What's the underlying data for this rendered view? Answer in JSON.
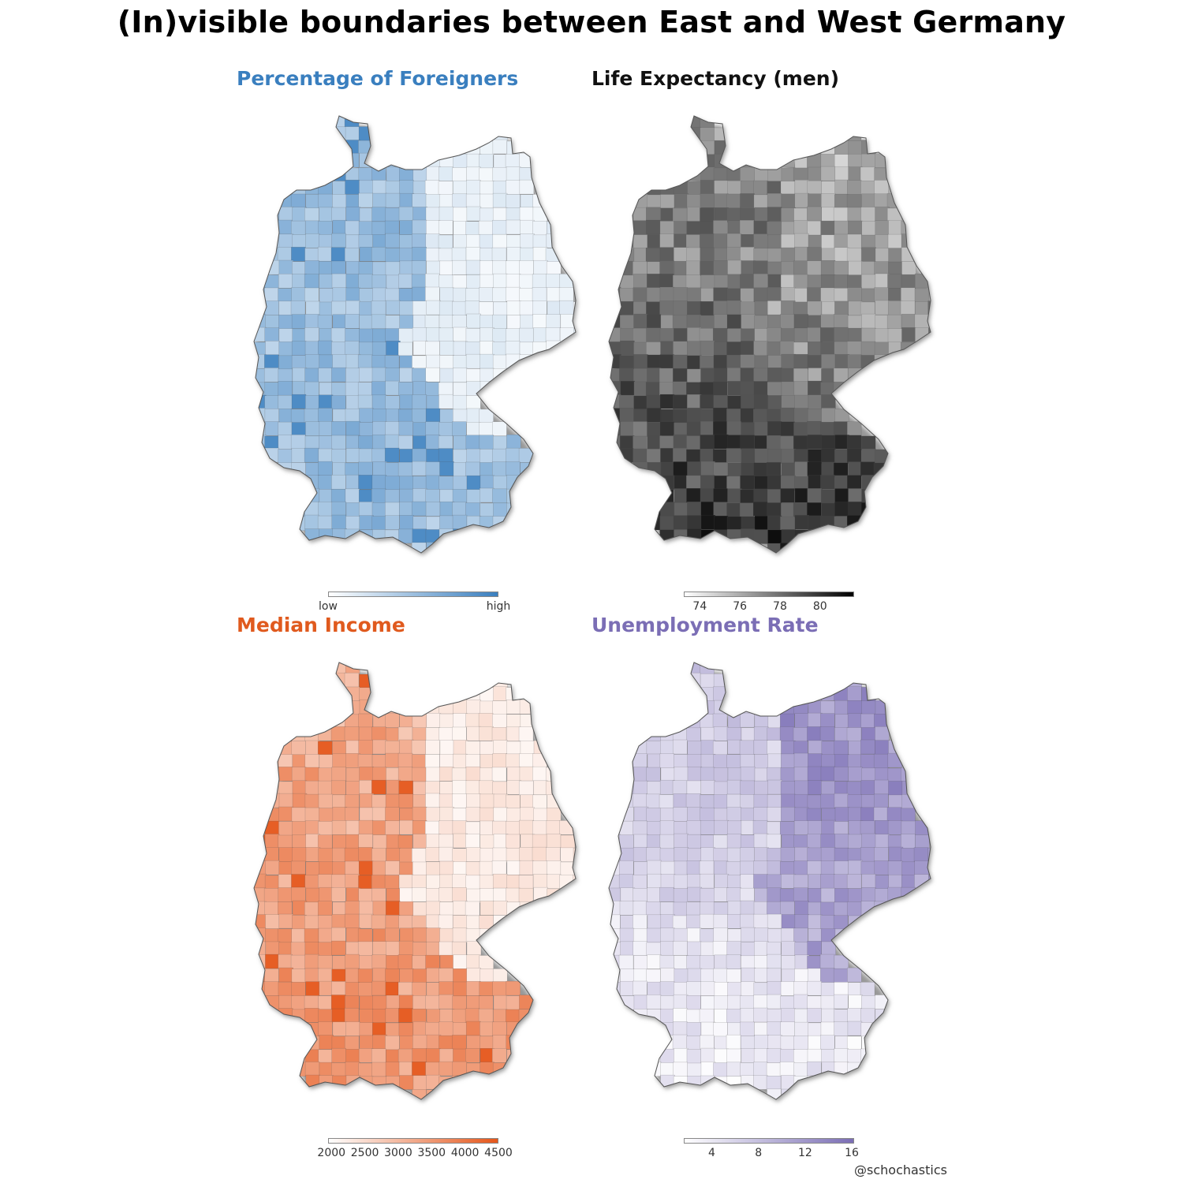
{
  "title": "(In)visible boundaries between East and West Germany",
  "credit": "@schochastics",
  "panels": [
    {
      "id": "foreigners",
      "title": "Percentage of Foreigners",
      "title_color": "#3a7fbf",
      "scale": {
        "from": "#ffffff",
        "to": "#3a7fbf"
      },
      "legend": {
        "labels": [
          "low",
          "high"
        ]
      },
      "pattern": "foreigners"
    },
    {
      "id": "life",
      "title": "Life Expectancy (men)",
      "title_color": "#111111",
      "scale": {
        "from": "#ffffff",
        "to": "#000000",
        "min": 73.2,
        "max": 81.7
      },
      "legend": {
        "labels": [
          "74",
          "76",
          "78",
          "80"
        ],
        "values": [
          74,
          76,
          78,
          80
        ]
      },
      "pattern": "life"
    },
    {
      "id": "income",
      "title": "Median Income",
      "title_color": "#e05a1e",
      "scale": {
        "from": "#ffffff",
        "to": "#e5561a",
        "min": 1950,
        "max": 4500
      },
      "legend": {
        "labels": [
          "2000",
          "2500",
          "3000",
          "3500",
          "4000",
          "4500"
        ],
        "values": [
          2000,
          2500,
          3000,
          3500,
          4000,
          4500
        ]
      },
      "pattern": "income"
    },
    {
      "id": "unemployment",
      "title": "Unemployment Rate",
      "title_color": "#7b6eb5",
      "scale": {
        "from": "#ffffff",
        "to": "#7b6eb5",
        "min": 1.6,
        "max": 16.2
      },
      "legend": {
        "labels": [
          "4",
          "8",
          "12",
          "16"
        ],
        "values": [
          4,
          8,
          12,
          16
        ]
      },
      "pattern": "unemployment"
    }
  ]
}
